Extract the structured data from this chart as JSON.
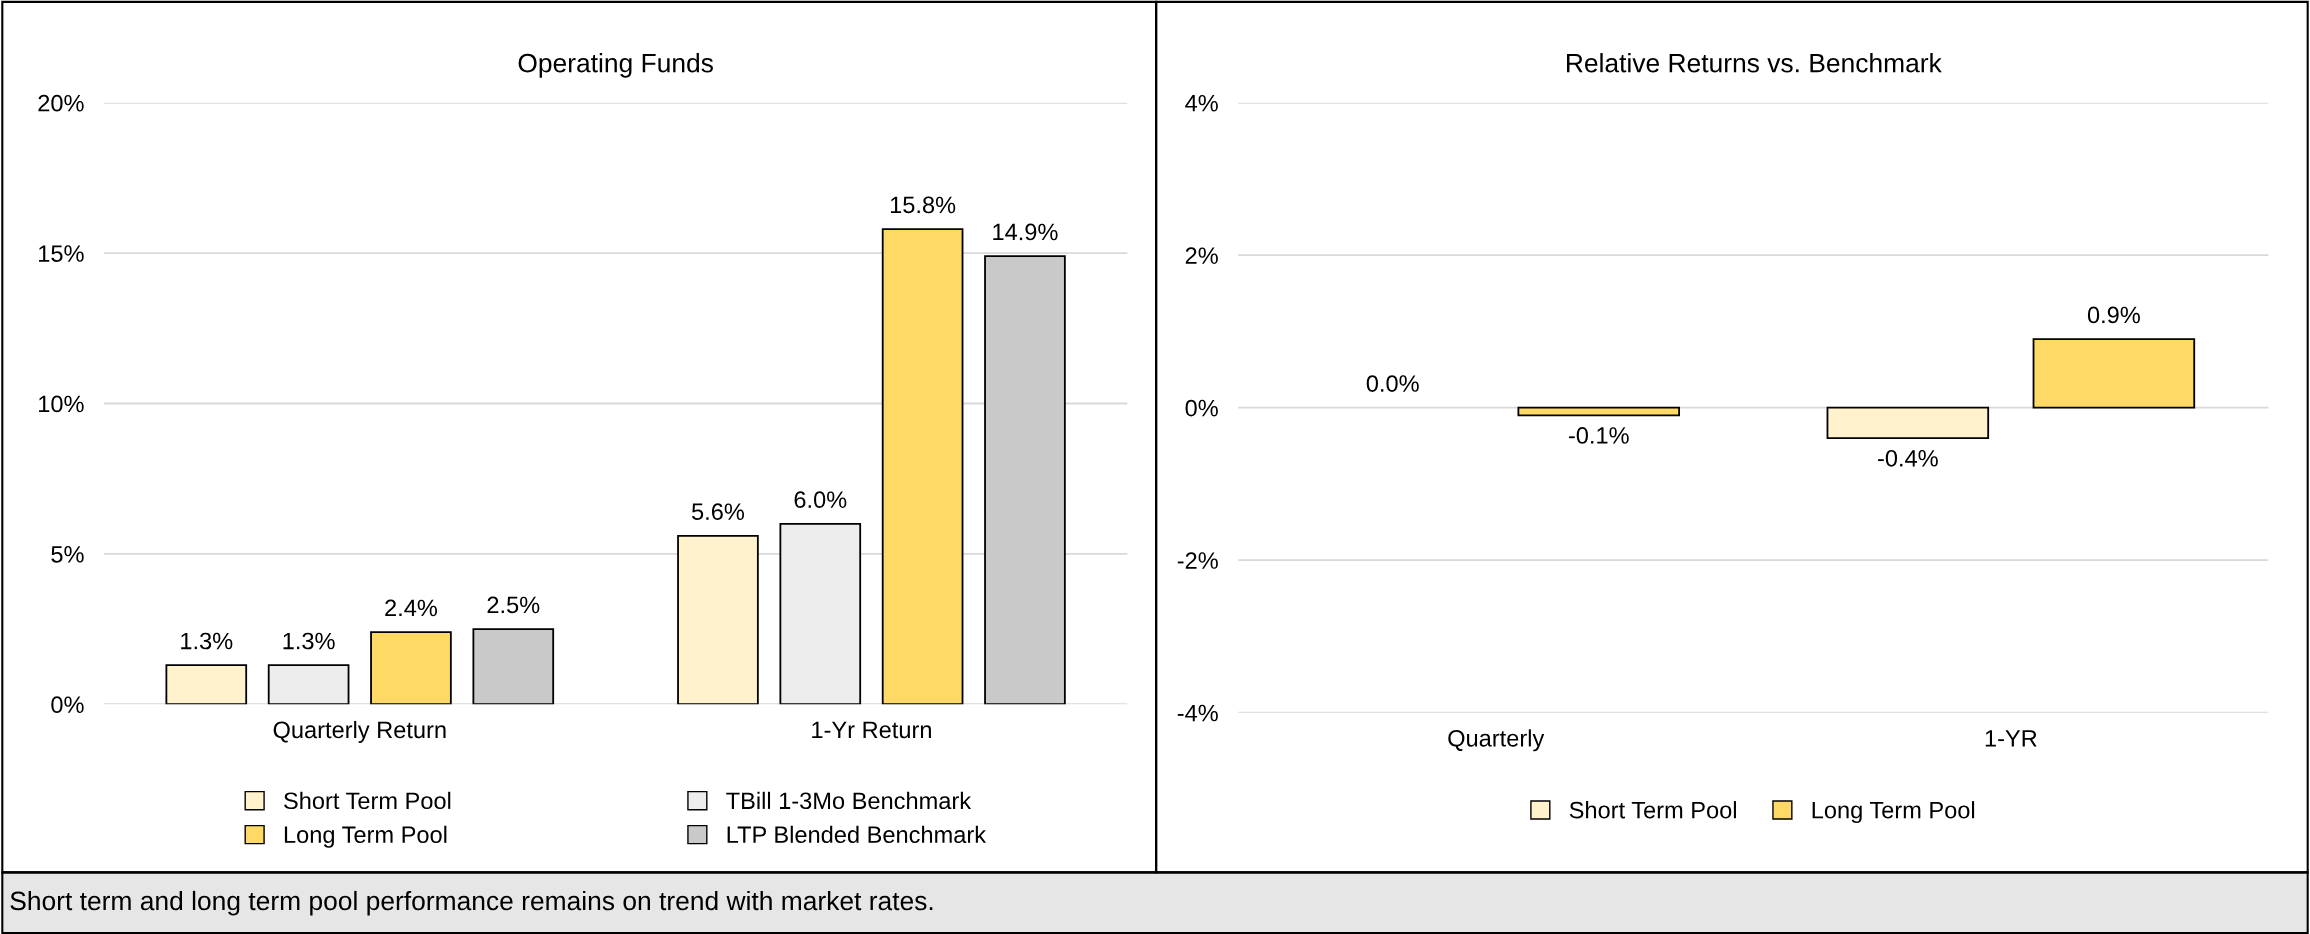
{
  "chart_data": [
    {
      "type": "bar",
      "title": "Operating Funds",
      "categories": [
        "Quarterly Return",
        "1-Yr Return"
      ],
      "series": [
        {
          "name": "Short Term Pool",
          "color": "#fff2cc",
          "values": [
            1.3,
            5.6
          ]
        },
        {
          "name": "TBill 1-3Mo Benchmark",
          "color": "#ededed",
          "values": [
            1.3,
            6.0
          ]
        },
        {
          "name": "Long Term Pool",
          "color": "#ffd966",
          "values": [
            2.4,
            15.8
          ]
        },
        {
          "name": "LTP Blended Benchmark",
          "color": "#c9c9c9",
          "values": [
            2.5,
            14.9
          ]
        }
      ],
      "ylim": [
        0,
        20
      ],
      "yticks": [
        {
          "value": 0,
          "label": "0%"
        },
        {
          "value": 5,
          "label": "5%"
        },
        {
          "value": 10,
          "label": "10%"
        },
        {
          "value": 15,
          "label": "15%"
        },
        {
          "value": 20,
          "label": "20%"
        }
      ],
      "value_labels": [
        [
          "1.3%",
          "5.6%"
        ],
        [
          "1.3%",
          "6.0%"
        ],
        [
          "2.4%",
          "15.8%"
        ],
        [
          "2.5%",
          "14.9%"
        ]
      ],
      "grid": "y",
      "legend": "bottom",
      "annotations": [
        "Short term and long term pool performance remains on trend with market rates."
      ]
    },
    {
      "type": "bar",
      "title": "Relative Returns vs. Benchmark",
      "categories": [
        "Quarterly",
        "1-YR"
      ],
      "series": [
        {
          "name": "Short Term Pool",
          "color": "#fff2cc",
          "values": [
            0.0,
            -0.4
          ]
        },
        {
          "name": "Long Term Pool",
          "color": "#ffd966",
          "values": [
            -0.1,
            0.9
          ]
        }
      ],
      "ylim": [
        -4,
        4
      ],
      "yticks": [
        {
          "value": -4,
          "label": "-4%"
        },
        {
          "value": -2,
          "label": "-2%"
        },
        {
          "value": 0,
          "label": "0%"
        },
        {
          "value": 2,
          "label": "2%"
        },
        {
          "value": 4,
          "label": "4%"
        }
      ],
      "value_labels": [
        [
          "0.0%",
          "-0.4%"
        ],
        [
          "-0.1%",
          "0.9%"
        ]
      ],
      "grid": "y",
      "legend": "bottom"
    }
  ]
}
